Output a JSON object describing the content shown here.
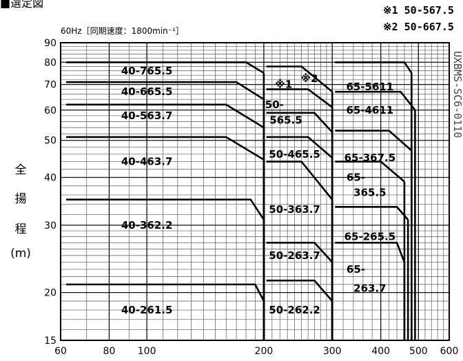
{
  "page": {
    "section_title": "■選定図",
    "notes": [
      "※1 50-567.5",
      "※2 50-667.5"
    ],
    "side_code": "UXBMS-SC6-0110"
  },
  "chart_data": {
    "type": "performance-selection-map",
    "title": "60Hz［同期速度：1800min⁻¹］",
    "xlabel": "",
    "ylabel_chars": [
      "全",
      "揚",
      "程",
      "(m)"
    ],
    "x_scale": "log",
    "y_scale": "log",
    "xlim": [
      60,
      600
    ],
    "ylim": [
      15,
      90
    ],
    "grid": true,
    "x_ticks": [
      60,
      80,
      100,
      200,
      300,
      400,
      500,
      600
    ],
    "x_tick_labels": [
      "60",
      "80",
      "100",
      "200",
      "300",
      "400",
      "500",
      "600"
    ],
    "y_ticks": [
      15,
      20,
      30,
      40,
      50,
      60,
      70,
      80,
      90
    ],
    "y_tick_labels": [
      "15",
      "20",
      "30",
      "40",
      "50",
      "60",
      "70",
      "80",
      "90"
    ],
    "x_minor_ticks": [
      70,
      90,
      110,
      120,
      130,
      140,
      150,
      160,
      170,
      180,
      190,
      210,
      220,
      230,
      240,
      250,
      260,
      270,
      280,
      290,
      320,
      340,
      360,
      380,
      420,
      440,
      460,
      480,
      520,
      540,
      560,
      580
    ],
    "y_minor_ticks": [
      16,
      17,
      18,
      19,
      21,
      22,
      23,
      24,
      25,
      26,
      27,
      28,
      29,
      32,
      34,
      36,
      38,
      42,
      44,
      46,
      48,
      52,
      54,
      56,
      58,
      62,
      64,
      66,
      68,
      72,
      74,
      76,
      78,
      82,
      84,
      86,
      88
    ],
    "regions": [
      {
        "label": "40-765.5",
        "top": [
          [
            62,
            80
          ],
          [
            180,
            80
          ],
          [
            200,
            75
          ]
        ],
        "label_at": [
          100,
          76
        ]
      },
      {
        "label": "40-665.5",
        "top": [
          [
            62,
            71
          ],
          [
            170,
            71
          ],
          [
            200,
            64
          ]
        ],
        "label_at": [
          100,
          67
        ]
      },
      {
        "label": "40-563.7",
        "top": [
          [
            62,
            62
          ],
          [
            160,
            62
          ],
          [
            200,
            54
          ]
        ],
        "label_at": [
          100,
          58
        ]
      },
      {
        "label": "40-463.7",
        "top": [
          [
            62,
            51
          ],
          [
            160,
            51
          ],
          [
            200,
            44.5
          ]
        ],
        "label_at": [
          100,
          44
        ]
      },
      {
        "label": "40-362.2",
        "top": [
          [
            62,
            35
          ],
          [
            185,
            35
          ],
          [
            200,
            31
          ]
        ],
        "label_at": [
          100,
          30
        ]
      },
      {
        "label": "40-261.5",
        "top": [
          [
            62,
            21
          ],
          [
            190,
            21
          ],
          [
            200,
            19
          ]
        ],
        "label_at": [
          100,
          18
        ]
      },
      {
        "label": "50-565.5",
        "top": [
          [
            203,
            59
          ],
          [
            270,
            59
          ],
          [
            300,
            52.5
          ]
        ],
        "label_at": [
          225,
          61
        ]
      },
      {
        "label": "50-465.5",
        "top": [
          [
            203,
            51
          ],
          [
            260,
            51
          ],
          [
            300,
            45
          ]
        ],
        "label_at": [
          240,
          46
        ]
      },
      {
        "label": "50-363.7",
        "top": [
          [
            203,
            44
          ],
          [
            250,
            44
          ],
          [
            300,
            35
          ]
        ],
        "label_at": [
          240,
          33
        ]
      },
      {
        "label": "50-263.7",
        "top": [
          [
            203,
            27
          ],
          [
            270,
            27
          ],
          [
            300,
            24
          ]
        ],
        "label_at": [
          240,
          25
        ]
      },
      {
        "label": "50-262.2",
        "top": [
          [
            203,
            21.5
          ],
          [
            270,
            21.5
          ],
          [
            300,
            19
          ]
        ],
        "label_at": [
          240,
          18
        ]
      },
      {
        "label": "65-5611",
        "top": [
          [
            305,
            80
          ],
          [
            460,
            80
          ],
          [
            480,
            75
          ]
        ],
        "label_at": [
          375,
          69
        ]
      },
      {
        "label": "65-4611",
        "top": [
          [
            305,
            67
          ],
          [
            450,
            67
          ],
          [
            490,
            60
          ]
        ],
        "label_at": [
          375,
          60
        ]
      },
      {
        "label": "65-367.5",
        "top": [
          [
            305,
            53
          ],
          [
            420,
            53
          ],
          [
            480,
            47
          ]
        ],
        "label_at": [
          375,
          45
        ]
      },
      {
        "label": "65-365.5",
        "top": [
          [
            305,
            44
          ],
          [
            400,
            44
          ],
          [
            460,
            39
          ]
        ],
        "label_at": [
          375,
          37.5
        ]
      },
      {
        "label": "65-265.5",
        "top": [
          [
            305,
            33.5
          ],
          [
            440,
            33.5
          ],
          [
            470,
            31
          ]
        ],
        "label_at": [
          375,
          28
        ]
      },
      {
        "label": "65-263.7",
        "top": [
          [
            305,
            27
          ],
          [
            440,
            27
          ],
          [
            460,
            24
          ]
        ],
        "label_at": [
          375,
          23
        ]
      },
      {
        "label": "50-567.5",
        "top": [
          [
            203,
            68
          ],
          [
            260,
            68
          ],
          [
            300,
            61
          ]
        ],
        "label_at": [
          225,
          70
        ]
      },
      {
        "label": "50-667.5",
        "top": [
          [
            203,
            78
          ],
          [
            250,
            78
          ],
          [
            300,
            67
          ]
        ],
        "label_at": [
          255,
          72.5
        ]
      }
    ],
    "region_label_texts": [
      {
        "text": "40-765.5",
        "pos": [
          100,
          76
        ]
      },
      {
        "text": "40-665.5",
        "pos": [
          100,
          67
        ]
      },
      {
        "text": "40-563.7",
        "pos": [
          100,
          58
        ]
      },
      {
        "text": "40-463.7",
        "pos": [
          100,
          44
        ]
      },
      {
        "text": "40-362.2",
        "pos": [
          100,
          30
        ]
      },
      {
        "text": "40-261.5",
        "pos": [
          100,
          18
        ]
      },
      {
        "text": "※1",
        "pos": [
          225,
          70
        ]
      },
      {
        "text": "※2",
        "pos": [
          262,
          72.5
        ]
      },
      {
        "text": "50-",
        "pos": [
          213,
          62
        ]
      },
      {
        "text": "565.5",
        "pos": [
          228,
          56.5
        ]
      },
      {
        "text": "50-465.5",
        "pos": [
          240,
          46
        ]
      },
      {
        "text": "50-363.7",
        "pos": [
          240,
          33
        ]
      },
      {
        "text": "50-263.7",
        "pos": [
          240,
          25
        ]
      },
      {
        "text": "50-262.2",
        "pos": [
          240,
          18
        ]
      },
      {
        "text": "65-5611",
        "pos": [
          375,
          69
        ]
      },
      {
        "text": "65-4611",
        "pos": [
          375,
          60
        ]
      },
      {
        "text": "65-367.5",
        "pos": [
          375,
          45
        ]
      },
      {
        "text": "65-",
        "pos": [
          345,
          40
        ]
      },
      {
        "text": "365.5",
        "pos": [
          375,
          36.5
        ]
      },
      {
        "text": "65-265.5",
        "pos": [
          375,
          28
        ]
      },
      {
        "text": "65-",
        "pos": [
          345,
          23
        ]
      },
      {
        "text": "263.7",
        "pos": [
          375,
          20.5
        ]
      }
    ]
  }
}
